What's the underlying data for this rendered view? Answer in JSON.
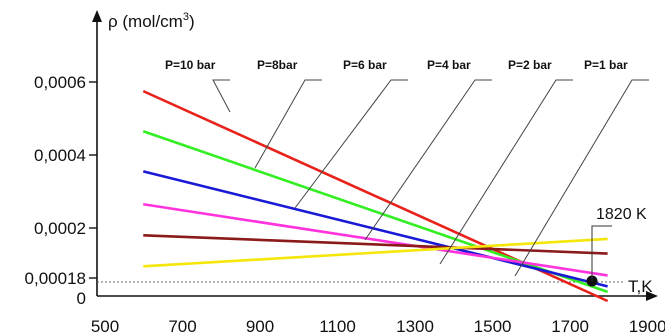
{
  "chart_data": {
    "type": "line",
    "ylabel": "ρ (mol/cm",
    "ylabel_sup": "3",
    "ylabel_close": ")",
    "xlabel": "T,K",
    "xlim": [
      500,
      1950
    ],
    "ylim": [
      0,
      0.00068
    ],
    "x_ticks": [
      {
        "value": 500,
        "label": "500"
      },
      {
        "value": 700,
        "label": "700"
      },
      {
        "value": 900,
        "label": "900"
      },
      {
        "value": 1100,
        "label": "1100"
      },
      {
        "value": 1300,
        "label": "1300"
      },
      {
        "value": 1500,
        "label": "1500"
      },
      {
        "value": 1700,
        "label": "1700"
      },
      {
        "value": 1900,
        "label": "1900"
      }
    ],
    "y_ticks": [
      {
        "value": 0,
        "label": "0"
      },
      {
        "value": 0.00018,
        "label": "0,00018"
      },
      {
        "value": 0.0002,
        "label": "0,0002"
      },
      {
        "value": 0.0004,
        "label": "0,0004"
      },
      {
        "value": 0.0006,
        "label": "0,0006"
      }
    ],
    "reference_line": {
      "y": 0.00018
    },
    "annotation": {
      "x": 1820,
      "y": 0.00018,
      "label": "1820 K"
    },
    "series": [
      {
        "name": "P=10 bar",
        "color": "#e8211a",
        "x": [
          560,
          1900
        ],
        "y": [
          0.000575,
          0.0
        ]
      },
      {
        "name": "P=8bar",
        "color": "#33ee22",
        "x": [
          560,
          1900
        ],
        "y": [
          0.000465,
          2.5e-05
        ]
      },
      {
        "name": "P=6 bar",
        "color": "#1a1ad6",
        "x": [
          560,
          1900
        ],
        "y": [
          0.000355,
          4e-05
        ]
      },
      {
        "name": "P=4 bar",
        "color": "#ff33dd",
        "x": [
          560,
          1900
        ],
        "y": [
          0.000265,
          7e-05
        ]
      },
      {
        "name": "P=2 bar",
        "color": "#8b1a1a",
        "x": [
          560,
          1900
        ],
        "y": [
          0.00018,
          0.00013
        ]
      },
      {
        "name": "P=1 bar",
        "color": "#f5e60a",
        "x": [
          560,
          1900
        ],
        "y": [
          9.5e-05,
          0.00017
        ]
      }
    ],
    "grid": false,
    "legend": "top, labels with leader lines to each series"
  }
}
